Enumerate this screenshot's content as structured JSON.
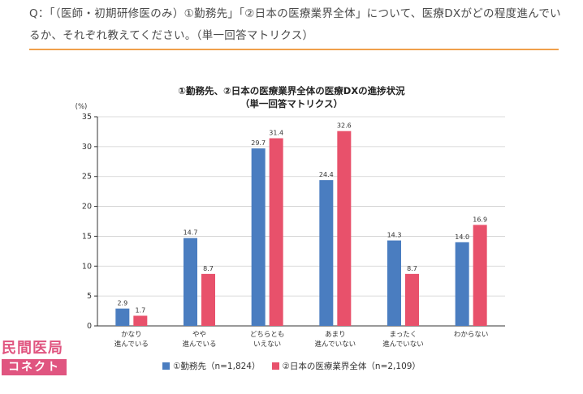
{
  "question": {
    "text": "Q：「（医師・初期研修医のみ）①勤務先」「②日本の医療業界全体」について、医療DXがどの程度進んでいるか、それぞれ教えてください。（単一回答マトリクス）"
  },
  "colors": {
    "series1": "#4a7dc0",
    "series2": "#e8516b",
    "accent_rule": "#f0a04b",
    "logo": "#e05580"
  },
  "logo": {
    "top_text": "民間医局",
    "bottom_text": "コネクト"
  },
  "chart_data": {
    "type": "bar",
    "title": "①勤務先、②日本の医療業界全体の医療DXの進捗状況",
    "subtitle": "（単一回答マトリクス）",
    "ylabel": "(%)",
    "xlabel": "",
    "ylim": [
      0,
      35
    ],
    "yticks": [
      0,
      5,
      10,
      15,
      20,
      25,
      30,
      35
    ],
    "categories": [
      [
        "かなり",
        "進んでいる"
      ],
      [
        "やや",
        "進んでいる"
      ],
      [
        "どちらとも",
        "いえない"
      ],
      [
        "あまり",
        "進んでいない"
      ],
      [
        "まったく",
        "進んでいない"
      ],
      [
        "わからない"
      ]
    ],
    "series": [
      {
        "name": "①勤務先（n=1,824）",
        "values": [
          2.9,
          14.7,
          29.7,
          24.4,
          14.3,
          14.0
        ]
      },
      {
        "name": "②日本の医療業界全体（n=2,109）",
        "values": [
          1.7,
          8.7,
          31.4,
          32.6,
          8.7,
          16.9
        ]
      }
    ],
    "legend_position": "bottom"
  }
}
